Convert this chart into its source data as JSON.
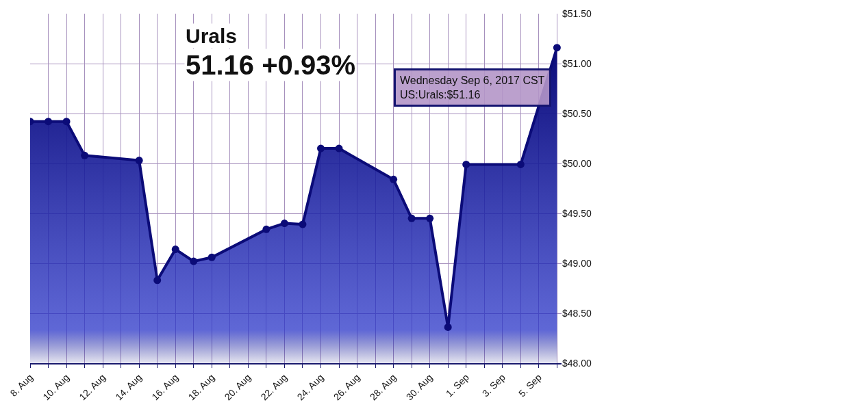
{
  "chart_data": {
    "type": "area",
    "title": "Urals",
    "subtitle": "51.16 +0.93%",
    "x": [
      "2017-08-08",
      "2017-08-09",
      "2017-08-10",
      "2017-08-11",
      "2017-08-14",
      "2017-08-15",
      "2017-08-16",
      "2017-08-17",
      "2017-08-18",
      "2017-08-21",
      "2017-08-22",
      "2017-08-23",
      "2017-08-24",
      "2017-08-25",
      "2017-08-28",
      "2017-08-29",
      "2017-08-30",
      "2017-08-31",
      "2017-09-01",
      "2017-09-04",
      "2017-09-06"
    ],
    "series": [
      {
        "color": "#0b0b78",
        "values": [
          50.42,
          50.42,
          50.42,
          50.08,
          50.03,
          48.83,
          49.14,
          49.02,
          49.06,
          49.34,
          49.4,
          49.39,
          50.15,
          50.15,
          49.84,
          49.45,
          49.45,
          48.36,
          49.99,
          49.99,
          51.16
        ]
      }
    ],
    "xlim": [
      "2017-08-08",
      "2017-09-06T06:00"
    ],
    "xticks": [
      {
        "value": "2017-08-08",
        "label": "8. Aug"
      },
      {
        "value": "2017-08-09",
        "label": null
      },
      {
        "value": "2017-08-10",
        "label": "10. Aug"
      },
      {
        "value": "2017-08-11",
        "label": null
      },
      {
        "value": "2017-08-12",
        "label": "12. Aug"
      },
      {
        "value": "2017-08-13",
        "label": null
      },
      {
        "value": "2017-08-14",
        "label": "14. Aug"
      },
      {
        "value": "2017-08-15",
        "label": null
      },
      {
        "value": "2017-08-16",
        "label": "16. Aug"
      },
      {
        "value": "2017-08-17",
        "label": null
      },
      {
        "value": "2017-08-18",
        "label": "18. Aug"
      },
      {
        "value": "2017-08-19",
        "label": null
      },
      {
        "value": "2017-08-20",
        "label": "20. Aug"
      },
      {
        "value": "2017-08-21",
        "label": null
      },
      {
        "value": "2017-08-22",
        "label": "22. Aug"
      },
      {
        "value": "2017-08-23",
        "label": null
      },
      {
        "value": "2017-08-24",
        "label": "24. Aug"
      },
      {
        "value": "2017-08-25",
        "label": null
      },
      {
        "value": "2017-08-26",
        "label": "26. Aug"
      },
      {
        "value": "2017-08-27",
        "label": null
      },
      {
        "value": "2017-08-28",
        "label": "28. Aug"
      },
      {
        "value": "2017-08-29",
        "label": null
      },
      {
        "value": "2017-08-30",
        "label": "30. Aug"
      },
      {
        "value": "2017-08-31",
        "label": null
      },
      {
        "value": "2017-09-01",
        "label": "1. Sep"
      },
      {
        "value": "2017-09-02",
        "label": null
      },
      {
        "value": "2017-09-03",
        "label": "3. Sep"
      },
      {
        "value": "2017-09-04",
        "label": null
      },
      {
        "value": "2017-09-05",
        "label": "5. Sep"
      },
      {
        "value": "2017-09-06",
        "label": null
      }
    ],
    "ylim": [
      48,
      51.5
    ],
    "yticks": [
      {
        "value": 48,
        "label": "$48.00"
      },
      {
        "value": 48.5,
        "label": "$48.50"
      },
      {
        "value": 49,
        "label": "$49.00"
      },
      {
        "value": 49.5,
        "label": "$49.50"
      },
      {
        "value": 50,
        "label": "$50.00"
      },
      {
        "value": 50.5,
        "label": "$50.50"
      },
      {
        "value": 51,
        "label": "$51.00"
      },
      {
        "value": 51.5,
        "label": "$51.50"
      }
    ],
    "annotations": [
      {
        "text": "Wednesday Sep 6, 2017 CST\nUS:Urals:$51.16",
        "x": "2017-09-06",
        "y": 51.16
      }
    ],
    "grid": true,
    "marker": "circle",
    "line_style": "solid"
  }
}
